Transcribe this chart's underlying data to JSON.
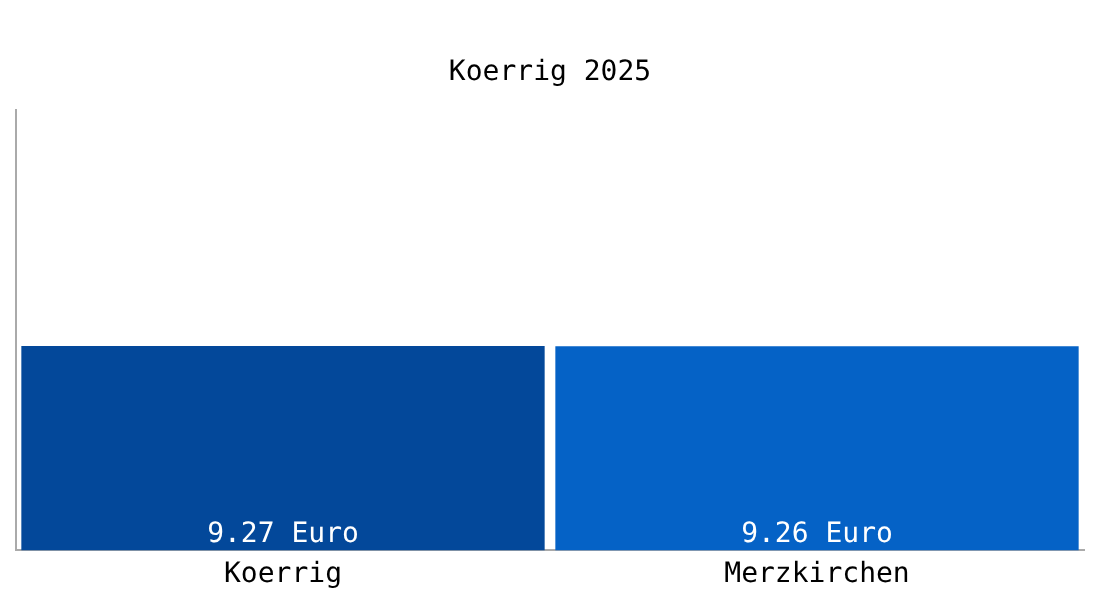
{
  "chart_data": {
    "type": "bar",
    "title": "Koerrig 2025",
    "categories": [
      "Koerrig",
      "Merzkirchen"
    ],
    "values": [
      9.27,
      9.26
    ],
    "value_labels": [
      "9.27 Euro",
      "9.26 Euro"
    ],
    "colors": [
      "#03489a",
      "#0562c6"
    ],
    "ylim": [
      0,
      20
    ],
    "tick_labels": "x",
    "grid": false,
    "legend": false
  }
}
